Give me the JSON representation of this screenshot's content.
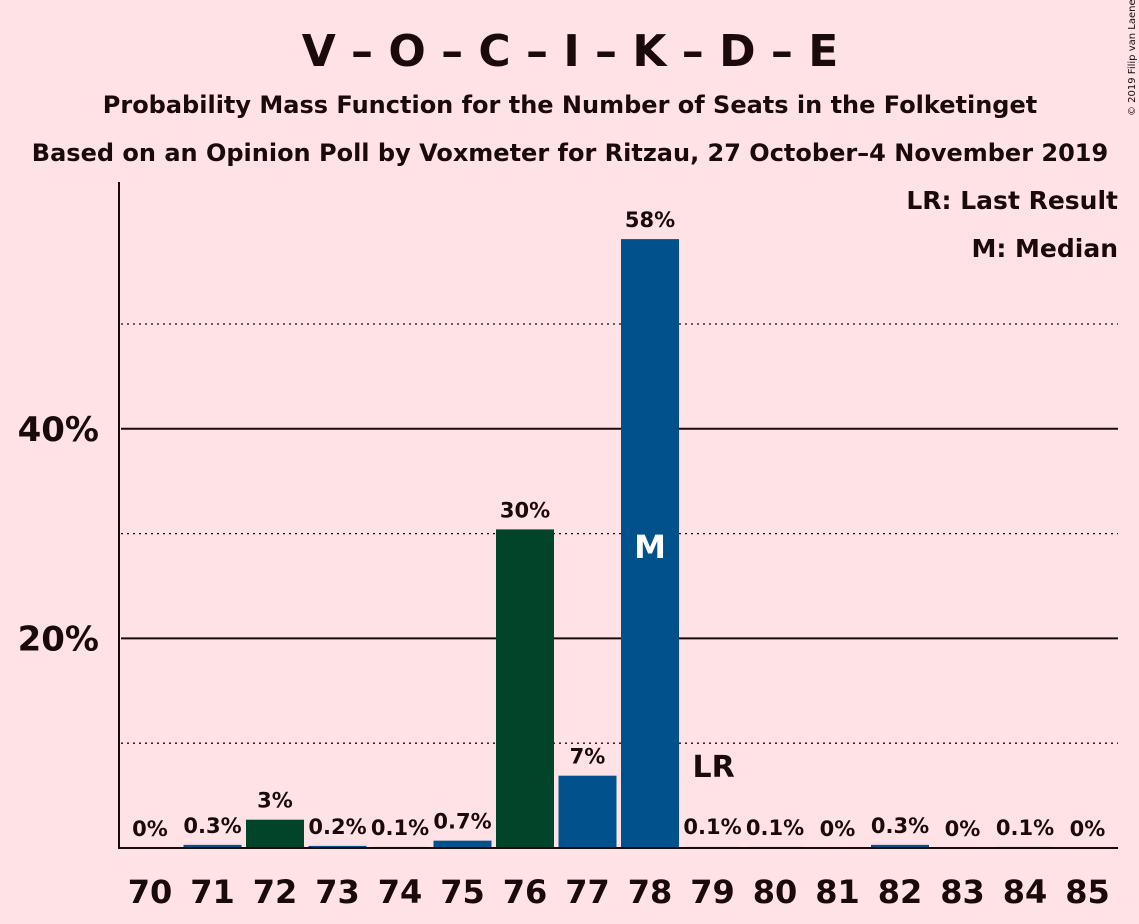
{
  "copyright": "© 2019 Filip van Laenen",
  "colors": {
    "background": "#FFE2E6",
    "green_dark": "#00452A",
    "green_light": "#004A30",
    "blue_dark": "#00518C",
    "blue_light": "#005A9A",
    "text": "#1A0A0C"
  },
  "chart_data": {
    "type": "bar",
    "title": "V – O – C – I – K – D – E",
    "subtitle": "Probability Mass Function for the Number of Seats in the Folketinget",
    "subtitle2": "Based on an Opinion Poll by Voxmeter for Ritzau, 27 October–4 November 2019",
    "legend": {
      "placement": "top-right",
      "items": [
        "LR: Last Result",
        "M: Median"
      ]
    },
    "categories": [
      "70",
      "71",
      "72",
      "73",
      "74",
      "75",
      "76",
      "77",
      "78",
      "79",
      "80",
      "81",
      "82",
      "83",
      "84",
      "85"
    ],
    "values": [
      0,
      0.3,
      2.7,
      0.2,
      0.1,
      0.7,
      30.4,
      6.9,
      58.1,
      0.1,
      0.1,
      0,
      0.3,
      0,
      0.1,
      0
    ],
    "data_labels": [
      "0%",
      "0.3%",
      "3%",
      "0.2%",
      "0.1%",
      "0.7%",
      "30%",
      "7%",
      "58%",
      "0.1%",
      "0.1%",
      "0%",
      "0.3%",
      "0%",
      "0.1%",
      "0%"
    ],
    "bar_colors": [
      "#00452A",
      "#00518C",
      "#00452A",
      "#00518C",
      "#00452A",
      "#00518C",
      "#00452A",
      "#00518C",
      "#00518C",
      "#00518C",
      "#00518C",
      "#00518C",
      "#00518C",
      "#00518C",
      "#00518C",
      "#00518C"
    ],
    "ylim": [
      0,
      63
    ],
    "yticks": [
      20,
      40
    ],
    "ytick_labels": [
      "20%",
      "40%"
    ],
    "minor_gridlines": [
      10,
      30,
      50
    ],
    "grid": true,
    "median": {
      "category": "78",
      "label": "M"
    },
    "last_result": {
      "category": "79",
      "label": "LR"
    }
  }
}
